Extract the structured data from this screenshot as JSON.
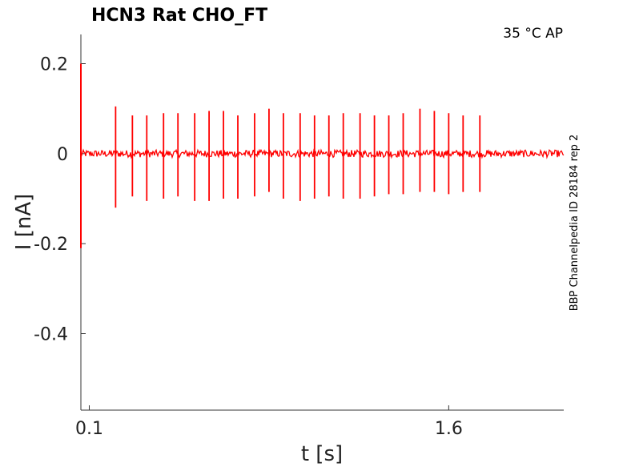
{
  "chart_data": {
    "type": "line",
    "title": "HCN3  Rat  CHO_FT",
    "annotation": "35 °C  AP",
    "side_label": "BBP Channelpedia ID 28184 rep 2",
    "xlabel": "t [s]",
    "ylabel": "I [nA]",
    "xlim": [
      0.065,
      2.08
    ],
    "ylim": [
      -0.57,
      0.265
    ],
    "x_ticks": [
      {
        "value": 0.1,
        "label": "0.1"
      },
      {
        "value": 1.6,
        "label": "1.6"
      }
    ],
    "y_ticks": [
      {
        "value": 0.2,
        "label": "0.2"
      },
      {
        "value": 0,
        "label": "0"
      },
      {
        "value": -0.2,
        "label": "-0.2"
      },
      {
        "value": -0.4,
        "label": "-0.4"
      }
    ],
    "grid": false,
    "color": "#ff0000",
    "baseline": {
      "x_start": 0.065,
      "x_end": 2.08,
      "y": 0.0,
      "noise": 0.008
    },
    "onset": {
      "x": 0.065,
      "y_max": 0.2,
      "y_min": -0.21
    },
    "spikes": [
      {
        "x": 0.21,
        "y_max": 0.105,
        "y_min": -0.12
      },
      {
        "x": 0.28,
        "y_max": 0.085,
        "y_min": -0.095
      },
      {
        "x": 0.34,
        "y_max": 0.085,
        "y_min": -0.105
      },
      {
        "x": 0.41,
        "y_max": 0.09,
        "y_min": -0.1
      },
      {
        "x": 0.47,
        "y_max": 0.09,
        "y_min": -0.095
      },
      {
        "x": 0.54,
        "y_max": 0.09,
        "y_min": -0.105
      },
      {
        "x": 0.6,
        "y_max": 0.095,
        "y_min": -0.105
      },
      {
        "x": 0.66,
        "y_max": 0.095,
        "y_min": -0.1
      },
      {
        "x": 0.72,
        "y_max": 0.085,
        "y_min": -0.1
      },
      {
        "x": 0.79,
        "y_max": 0.09,
        "y_min": -0.095
      },
      {
        "x": 0.85,
        "y_max": 0.1,
        "y_min": -0.085
      },
      {
        "x": 0.91,
        "y_max": 0.09,
        "y_min": -0.1
      },
      {
        "x": 0.98,
        "y_max": 0.09,
        "y_min": -0.105
      },
      {
        "x": 1.04,
        "y_max": 0.085,
        "y_min": -0.1
      },
      {
        "x": 1.1,
        "y_max": 0.085,
        "y_min": -0.095
      },
      {
        "x": 1.16,
        "y_max": 0.09,
        "y_min": -0.1
      },
      {
        "x": 1.23,
        "y_max": 0.09,
        "y_min": -0.1
      },
      {
        "x": 1.29,
        "y_max": 0.085,
        "y_min": -0.095
      },
      {
        "x": 1.35,
        "y_max": 0.085,
        "y_min": -0.09
      },
      {
        "x": 1.41,
        "y_max": 0.09,
        "y_min": -0.09
      },
      {
        "x": 1.48,
        "y_max": 0.1,
        "y_min": -0.085
      },
      {
        "x": 1.54,
        "y_max": 0.095,
        "y_min": -0.085
      },
      {
        "x": 1.6,
        "y_max": 0.09,
        "y_min": -0.09
      },
      {
        "x": 1.66,
        "y_max": 0.085,
        "y_min": -0.085
      },
      {
        "x": 1.73,
        "y_max": 0.085,
        "y_min": -0.085
      }
    ]
  }
}
